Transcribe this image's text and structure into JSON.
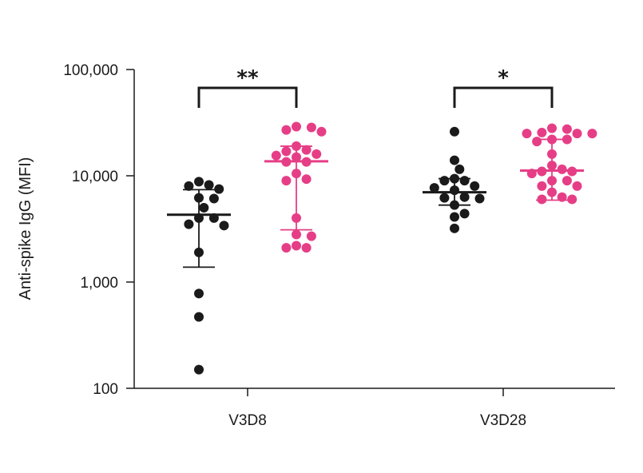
{
  "chart_data": {
    "type": "scatter",
    "ylabel": "Anti-spike IgG (MFI)",
    "yscale": "log",
    "ylim": [
      100,
      100000
    ],
    "yticks": [
      100,
      1000,
      10000,
      100000
    ],
    "ytick_labels": [
      "100",
      "1,000",
      "10,000",
      "100,000"
    ],
    "categories": [
      "V3D8",
      "V3D28"
    ],
    "colors": {
      "black_group": "#1a1a1a",
      "pink_group": "#e63e86"
    },
    "groups": [
      {
        "category": "V3D8",
        "series": [
          {
            "color": "black",
            "values": [
              8800,
              8200,
              8000,
              7500,
              6200,
              6100,
              5000,
              4000,
              4000,
              3500,
              3400,
              1900,
              780,
              470,
              150
            ],
            "median": 4300,
            "error_low": 1380,
            "error_high": 7400
          },
          {
            "color": "pink",
            "values": [
              29000,
              28500,
              27000,
              26000,
              19000,
              17500,
              17000,
              16000,
              15500,
              15000,
              13500,
              13500,
              10500,
              9300,
              9000,
              4000,
              2800,
              2700,
              2200,
              2100,
              2100
            ],
            "median": 13700,
            "error_low": 3100,
            "error_high": 19000
          }
        ],
        "significance": "**"
      },
      {
        "category": "V3D28",
        "series": [
          {
            "color": "black",
            "values": [
              26000,
              14000,
              11500,
              9400,
              9000,
              9000,
              8000,
              7700,
              7300,
              6300,
              6200,
              6100,
              5300,
              4400,
              4100,
              3200
            ],
            "median": 7000,
            "error_low": 5300,
            "error_high": 9400
          },
          {
            "color": "pink",
            "values": [
              28000,
              27500,
              25500,
              25000,
              25000,
              25000,
              22000,
              22000,
              21000,
              16000,
              12500,
              11500,
              11000,
              11000,
              10500,
              9000,
              9000,
              8000,
              8000,
              7000,
              6300,
              6000,
              6000
            ],
            "median": 11200,
            "error_low": 5900,
            "error_high": 22000
          }
        ],
        "significance": "*"
      }
    ]
  }
}
